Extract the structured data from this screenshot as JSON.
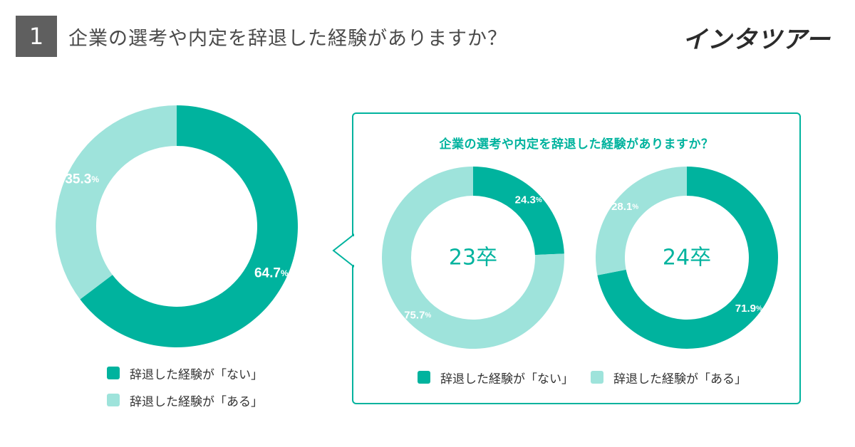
{
  "header": {
    "number": "1",
    "question": "企業の選考や内定を辞退した経験がありますか？",
    "brand": "インタツアー"
  },
  "colors": {
    "no": "#00b39e",
    "yes": "#9ee3db",
    "accent": "#00b39e"
  },
  "callout": {
    "title": "企業の選考や内定を辞退した経験がありますか？"
  },
  "legend": {
    "no": "辞退した経験が「ない」",
    "yes": "辞退した経験が「ある」"
  },
  "chart_data": [
    {
      "type": "pie",
      "id": "overall",
      "center_label": "",
      "slices": [
        {
          "key": "no",
          "label": "辞退した経験が「ない」",
          "value": 64.7
        },
        {
          "key": "yes",
          "label": "辞退した経験が「ある」",
          "value": 35.3
        }
      ]
    },
    {
      "type": "pie",
      "id": "23",
      "center_label": "23卒",
      "slices": [
        {
          "key": "no",
          "label": "辞退した経験が「ない」",
          "value": 24.3
        },
        {
          "key": "yes",
          "label": "辞退した経験が「ある」",
          "value": 75.7
        }
      ]
    },
    {
      "type": "pie",
      "id": "24",
      "center_label": "24卒",
      "slices": [
        {
          "key": "no",
          "label": "辞退した経験が「ない」",
          "value": 71.9
        },
        {
          "key": "yes",
          "label": "辞退した経験が「ある」",
          "value": 28.1
        }
      ]
    }
  ]
}
